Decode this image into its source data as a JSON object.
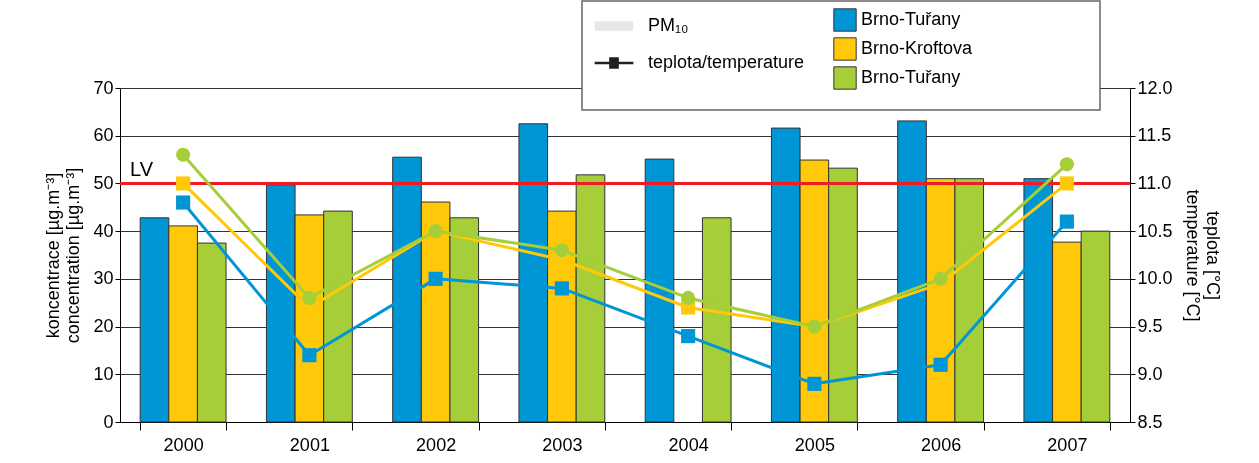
{
  "chart_data": {
    "type": "bar",
    "categories": [
      "2000",
      "2001",
      "2002",
      "2003",
      "2004",
      "2005",
      "2006",
      "2007"
    ],
    "series": [
      {
        "name": "Brno-Tuřany",
        "color": "#0096d6",
        "values": [
          42.8,
          49.7,
          55.5,
          62.5,
          55.1,
          61.6,
          63.1,
          51.0
        ]
      },
      {
        "name": "Brno-Kroftova",
        "color": "#ffc90a",
        "values": [
          41.1,
          43.4,
          46.1,
          44.2,
          null,
          54.9,
          51.0,
          37.7
        ]
      },
      {
        "name": "Brno-Tuřany",
        "color": "#a6ce39",
        "values": [
          37.5,
          44.2,
          42.8,
          51.8,
          42.8,
          53.2,
          51.0,
          40.0
        ]
      },
      {
        "type": "line",
        "axis": "y2",
        "marker": "square",
        "color": "#0096d6",
        "values": [
          10.8,
          9.2,
          10.0,
          9.9,
          9.4,
          8.9,
          9.1,
          10.6
        ]
      },
      {
        "type": "line",
        "axis": "y2",
        "marker": "square",
        "color": "#ffc90a",
        "values": [
          11.0,
          9.7,
          10.5,
          10.2,
          9.7,
          9.5,
          9.95,
          11.0
        ]
      },
      {
        "type": "line",
        "axis": "y2",
        "marker": "circle",
        "color": "#a6ce39",
        "values": [
          11.3,
          9.8,
          10.5,
          10.3,
          9.8,
          9.5,
          10.0,
          11.2
        ]
      }
    ],
    "ylabel": "koncentrace [µg.m⁻³]\nconcentration [µg.m⁻³]",
    "y2label": "teplota [°C]\ntemperature [°C]",
    "ylim": [
      0,
      70
    ],
    "yticks": [
      0,
      10,
      20,
      30,
      40,
      50,
      60,
      70
    ],
    "y2lim": [
      8.5,
      12.0
    ],
    "y2ticks": [
      8.5,
      {
        "value": 9,
        "label": "9.0"
      },
      9.5,
      {
        "value": 10,
        "label": "10.0"
      },
      10.5,
      {
        "value": 11,
        "label": "11.0"
      },
      11.5,
      {
        "value": 12,
        "label": "12.0"
      }
    ],
    "ref_lines": [
      {
        "axis": "y",
        "value": 50,
        "label": "LV",
        "color": "#ee1c25"
      }
    ],
    "annotations": [
      "PM₁₀",
      "teplota/temperature"
    ],
    "grid": "y",
    "legend": "top right"
  }
}
